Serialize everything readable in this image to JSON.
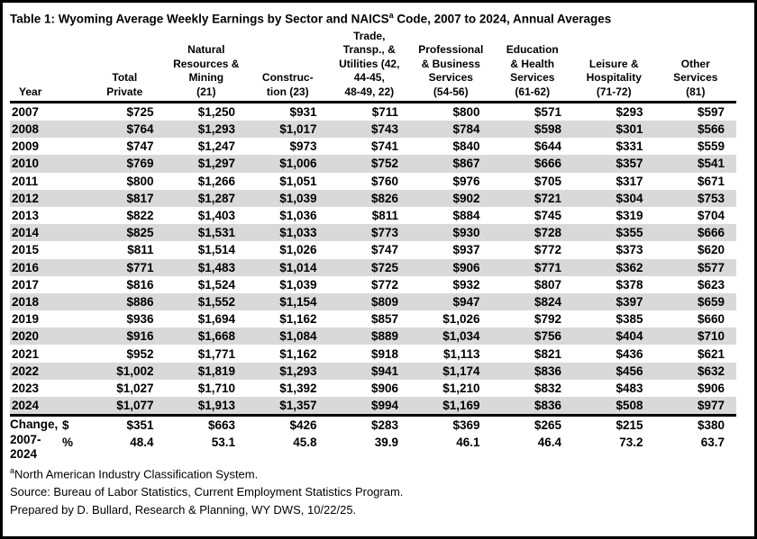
{
  "title": {
    "pre": "Table 1: Wyoming Average Weekly Earnings by Sector and NAICS",
    "sup": "a",
    "post": " Code, 2007 to 2024, Annual Averages"
  },
  "chart_data": {
    "type": "table",
    "title": "Table 1: Wyoming Average Weekly Earnings by Sector and NAICS Code, 2007 to 2024, Annual Averages",
    "columns": [
      "Year",
      "Total\nPrivate",
      "Natural\nResources &\nMining\n(21)",
      "Construc-\ntion (23)",
      "Trade,\nTransp., &\nUtilities (42,\n44-45,\n48-49, 22)",
      "Professional\n& Business\nServices\n(54-56)",
      "Education\n& Health\nServices\n(61-62)",
      "Leisure &\nHospitality\n(71-72)",
      "Other\nServices\n(81)"
    ],
    "rows": [
      {
        "year": "2007",
        "values": [
          "$725",
          "$1,250",
          "$931",
          "$711",
          "$800",
          "$571",
          "$293",
          "$597"
        ]
      },
      {
        "year": "2008",
        "values": [
          "$764",
          "$1,293",
          "$1,017",
          "$743",
          "$784",
          "$598",
          "$301",
          "$566"
        ]
      },
      {
        "year": "2009",
        "values": [
          "$747",
          "$1,247",
          "$973",
          "$741",
          "$840",
          "$644",
          "$331",
          "$559"
        ]
      },
      {
        "year": "2010",
        "values": [
          "$769",
          "$1,297",
          "$1,006",
          "$752",
          "$867",
          "$666",
          "$357",
          "$541"
        ]
      },
      {
        "year": "2011",
        "values": [
          "$800",
          "$1,266",
          "$1,051",
          "$760",
          "$976",
          "$705",
          "$317",
          "$671"
        ]
      },
      {
        "year": "2012",
        "values": [
          "$817",
          "$1,287",
          "$1,039",
          "$826",
          "$902",
          "$721",
          "$304",
          "$753"
        ]
      },
      {
        "year": "2013",
        "values": [
          "$822",
          "$1,403",
          "$1,036",
          "$811",
          "$884",
          "$745",
          "$319",
          "$704"
        ]
      },
      {
        "year": "2014",
        "values": [
          "$825",
          "$1,531",
          "$1,033",
          "$773",
          "$930",
          "$728",
          "$355",
          "$666"
        ]
      },
      {
        "year": "2015",
        "values": [
          "$811",
          "$1,514",
          "$1,026",
          "$747",
          "$937",
          "$772",
          "$373",
          "$620"
        ]
      },
      {
        "year": "2016",
        "values": [
          "$771",
          "$1,483",
          "$1,014",
          "$725",
          "$906",
          "$771",
          "$362",
          "$577"
        ]
      },
      {
        "year": "2017",
        "values": [
          "$816",
          "$1,524",
          "$1,039",
          "$772",
          "$932",
          "$807",
          "$378",
          "$623"
        ]
      },
      {
        "year": "2018",
        "values": [
          "$886",
          "$1,552",
          "$1,154",
          "$809",
          "$947",
          "$824",
          "$397",
          "$659"
        ]
      },
      {
        "year": "2019",
        "values": [
          "$936",
          "$1,694",
          "$1,162",
          "$857",
          "$1,026",
          "$792",
          "$385",
          "$660"
        ]
      },
      {
        "year": "2020",
        "values": [
          "$916",
          "$1,668",
          "$1,084",
          "$889",
          "$1,034",
          "$756",
          "$404",
          "$710"
        ]
      },
      {
        "year": "2021",
        "values": [
          "$952",
          "$1,771",
          "$1,162",
          "$918",
          "$1,113",
          "$821",
          "$436",
          "$621"
        ]
      },
      {
        "year": "2022",
        "values": [
          "$1,002",
          "$1,819",
          "$1,293",
          "$941",
          "$1,174",
          "$836",
          "$456",
          "$632"
        ]
      },
      {
        "year": "2023",
        "values": [
          "$1,027",
          "$1,710",
          "$1,392",
          "$906",
          "$1,210",
          "$832",
          "$483",
          "$906"
        ]
      },
      {
        "year": "2024",
        "values": [
          "$1,077",
          "$1,913",
          "$1,357",
          "$994",
          "$1,169",
          "$836",
          "$508",
          "$977"
        ]
      }
    ],
    "change": {
      "label": "Change,\n2007-\n2024",
      "dollar_label": "$",
      "percent_label": "%",
      "dollar_values": [
        "$351",
        "$663",
        "$426",
        "$283",
        "$369",
        "$265",
        "$215",
        "$380"
      ],
      "percent_values": [
        "48.4",
        "53.1",
        "45.8",
        "39.9",
        "46.1",
        "46.4",
        "73.2",
        "63.7"
      ]
    }
  },
  "footnotes": {
    "note_a_sup": "a",
    "note_a_text": "North American Industry Classification System.",
    "source": "Source: Bureau of Labor Statistics, Current Employment Statistics Program.",
    "prepared": "Prepared by D. Bullard, Research & Planning, WY DWS, 10/22/25."
  },
  "colors": {
    "stripe": "#d9d9d9",
    "border": "#000000",
    "text": "#000000",
    "background": "#ffffff"
  }
}
